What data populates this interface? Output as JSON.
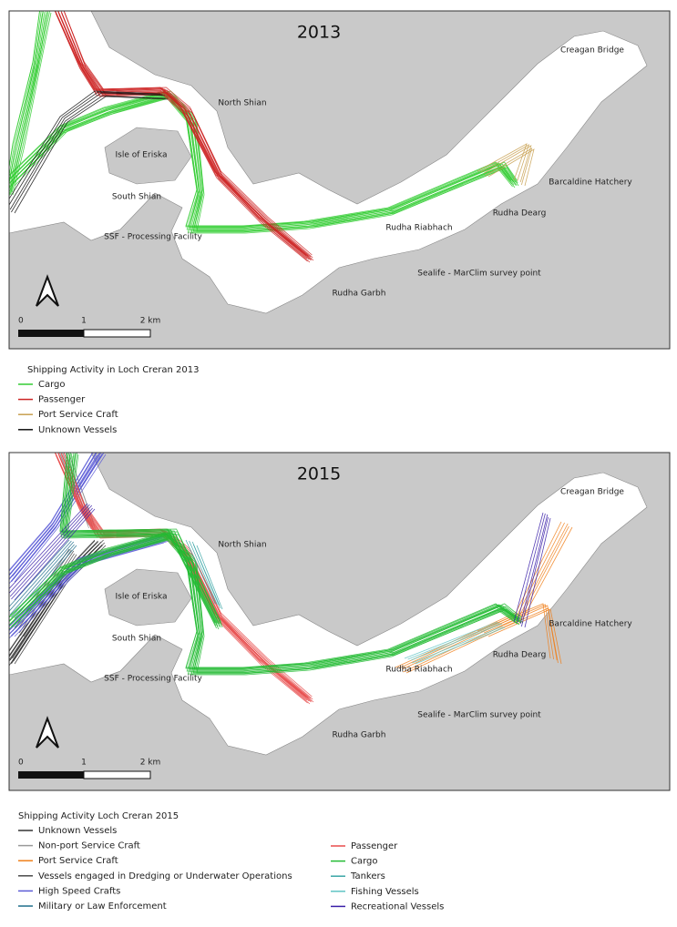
{
  "maps": [
    {
      "title": "2013",
      "labels": [
        "Creagan Bridge",
        "North Shian",
        "Isle of Eriska",
        "South Shian",
        "SSF - Processing Facility",
        "Rudha Riabhach",
        "Barcaldine Hatchery",
        "Rudha Dearg",
        "Sealife - MarClim survey point",
        "Rudha Garbh"
      ],
      "scale": [
        "0",
        "1",
        "2 km"
      ]
    },
    {
      "title": "2015",
      "labels": [
        "Creagan Bridge",
        "North Shian",
        "Isle of Eriska",
        "South Shian",
        "SSF - Processing Facility",
        "Rudha Riabhach",
        "Barcaldine Hatchery",
        "Rudha Dearg",
        "Sealife - MarClim survey point",
        "Rudha Garbh"
      ],
      "scale": [
        "0",
        "1",
        "2 km"
      ]
    }
  ],
  "legends": [
    {
      "title": "Shipping Activity in Loch Creran 2013",
      "columns": [
        [
          {
            "name": "Cargo",
            "color": "#33cc33"
          },
          {
            "name": "Passenger",
            "color": "#cc2222"
          },
          {
            "name": "Port Service Craft",
            "color": "#c8a050"
          },
          {
            "name": "Unknown Vessels",
            "color": "#111111"
          }
        ]
      ]
    },
    {
      "title": "Shipping Activity Loch Creran 2015",
      "columns": [
        [
          {
            "name": "Unknown Vessels",
            "color": "#333333"
          },
          {
            "name": "Non-port Service Craft",
            "color": "#999999"
          },
          {
            "name": "Port Service Craft",
            "color": "#f07f1a"
          },
          {
            "name": "Vessels engaged in Dredging or Underwater Operations",
            "color": "#4a4a4a"
          },
          {
            "name": "High Speed Crafts",
            "color": "#5b5bd6"
          },
          {
            "name": "Military or Law Enforcement",
            "color": "#1f6f8b"
          }
        ],
        [
          {
            "name": "Passenger",
            "color": "#e84c4c"
          },
          {
            "name": "Cargo",
            "color": "#22bb33"
          },
          {
            "name": "Tankers",
            "color": "#3aa6a6"
          },
          {
            "name": "Fishing Vessels",
            "color": "#5fc4c4"
          },
          {
            "name": "Recreational Vessels",
            "color": "#3a1fa8"
          }
        ]
      ]
    }
  ]
}
